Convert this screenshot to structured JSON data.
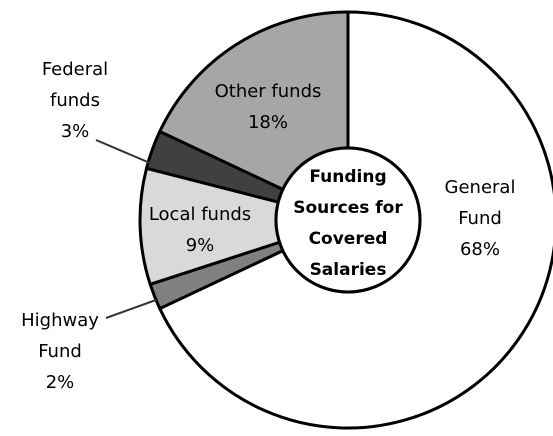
{
  "chart_data": {
    "type": "donut",
    "title": "Funding Sources for Covered Salaries",
    "categories": [
      "General Fund",
      "Highway Fund",
      "Local funds",
      "Federal funds",
      "Other funds"
    ],
    "values": [
      68,
      2,
      9,
      3,
      18
    ],
    "value_labels": [
      "68%",
      "2%",
      "9%",
      "3%",
      "18%"
    ],
    "colors": [
      "#ffffff",
      "#808080",
      "#d9d9d9",
      "#404040",
      "#a6a6a6"
    ]
  }
}
